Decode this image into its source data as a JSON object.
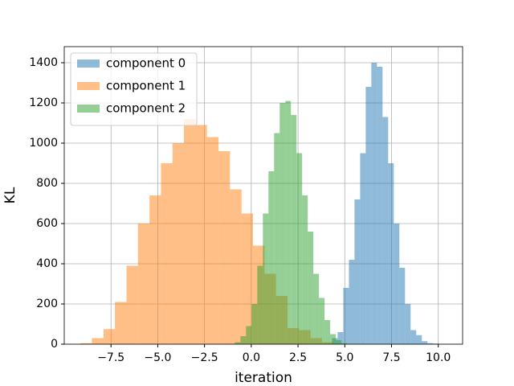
{
  "chart_data": {
    "type": "histogram",
    "xlabel": "iteration",
    "ylabel": "KL",
    "xlim": [
      -10,
      11.3
    ],
    "ylim": [
      0,
      1480
    ],
    "xticks": [
      {
        "value": -7.5,
        "label": "−7.5"
      },
      {
        "value": -5,
        "label": "−5.0"
      },
      {
        "value": -2.5,
        "label": "−2.5"
      },
      {
        "value": 0,
        "label": "0.0"
      },
      {
        "value": 2.5,
        "label": "2.5"
      },
      {
        "value": 5,
        "label": "5.0"
      },
      {
        "value": 7.5,
        "label": "7.5"
      },
      {
        "value": 10,
        "label": "10.0"
      }
    ],
    "yticks": [
      0,
      200,
      400,
      600,
      800,
      1000,
      1200,
      1400
    ],
    "grid": true,
    "legend": "upper left",
    "opacity": 0.5,
    "series": [
      {
        "name": "component 0",
        "color": "#1f77b4",
        "bins": [
          4.32,
          4.62,
          4.92,
          5.22,
          5.52,
          5.82,
          6.12,
          6.42,
          6.72,
          7.02,
          7.32,
          7.62,
          7.92,
          8.22,
          8.52,
          8.82,
          9.12,
          9.42,
          9.72,
          10.02,
          10.32
        ],
        "values": [
          30,
          60,
          280,
          420,
          720,
          950,
          1280,
          1400,
          1380,
          1130,
          900,
          600,
          380,
          200,
          70,
          45,
          15,
          5,
          3,
          1
        ]
      },
      {
        "name": "component 1",
        "color": "#ff7f0e",
        "bins": [
          -9.13,
          -8.52,
          -7.9,
          -7.29,
          -6.67,
          -6.06,
          -5.44,
          -4.83,
          -4.21,
          -3.6,
          -2.98,
          -2.37,
          -1.75,
          -1.14,
          -0.52,
          0.09,
          0.71,
          1.32,
          1.94,
          2.55,
          3.17,
          3.78,
          4.4
        ],
        "values": [
          5,
          30,
          75,
          210,
          390,
          600,
          740,
          900,
          1000,
          1120,
          1090,
          1030,
          960,
          770,
          650,
          490,
          350,
          240,
          80,
          70,
          30,
          10
        ]
      },
      {
        "name": "component 2",
        "color": "#2ca02c",
        "bins": [
          -0.88,
          -0.58,
          -0.28,
          0.02,
          0.32,
          0.62,
          0.92,
          1.22,
          1.52,
          1.82,
          2.12,
          2.42,
          2.72,
          3.02,
          3.32,
          3.62,
          3.92,
          4.22,
          4.52,
          4.82,
          5.12
        ],
        "values": [
          10,
          40,
          90,
          200,
          390,
          650,
          860,
          1050,
          1200,
          1210,
          1140,
          950,
          740,
          560,
          350,
          230,
          120,
          50,
          20,
          5
        ]
      }
    ]
  }
}
